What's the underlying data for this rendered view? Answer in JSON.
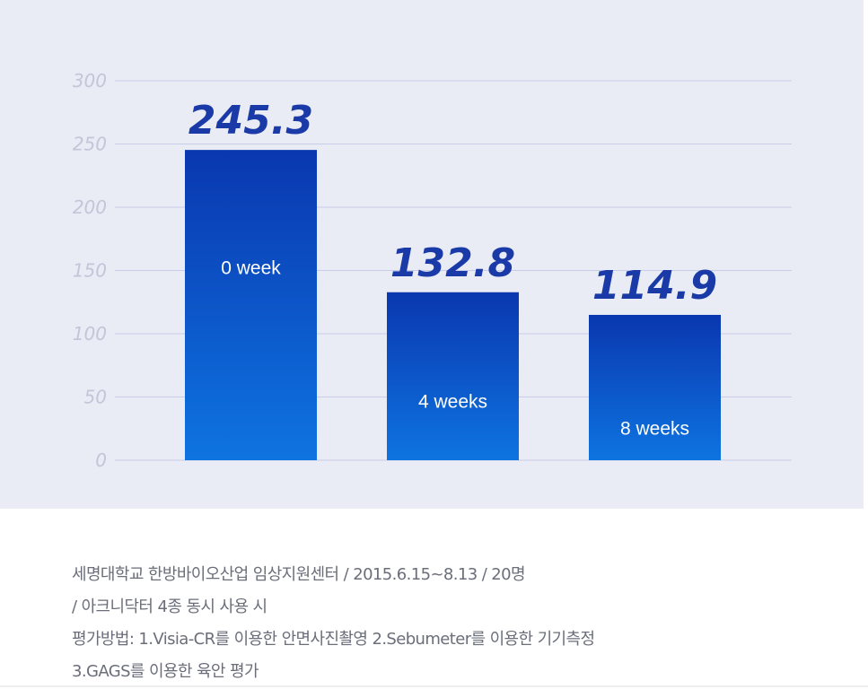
{
  "chart_data": {
    "type": "bar",
    "categories": [
      "0 week",
      "4 weeks",
      "8 weeks"
    ],
    "values": [
      245.3,
      132.8,
      114.9
    ],
    "value_labels": [
      "245.3",
      "132.8",
      "114.9"
    ],
    "ylim": [
      0,
      300
    ],
    "yticks": [
      0,
      50,
      100,
      150,
      200,
      250,
      300
    ],
    "grid": true,
    "legend": "none",
    "colors": {
      "bar_top": "#0a37b0",
      "bar_bottom": "#0e74e0",
      "value_text": "#1a3aa8",
      "grid": "#c9cce6",
      "panel": "#e9ebf5"
    }
  },
  "caption": {
    "lines": [
      "세명대학교 한방바이오산업 임상지원센터 / 2015.6.15~8.13 / 20명",
      "/ 아크니닥터 4종 동시 사용 시",
      "평가방법: 1.Visia-CR를 이용한 안면사진촬영 2.Sebumeter를 이용한 기기측정",
      "3.GAGS를 이용한 육안 평가"
    ]
  }
}
